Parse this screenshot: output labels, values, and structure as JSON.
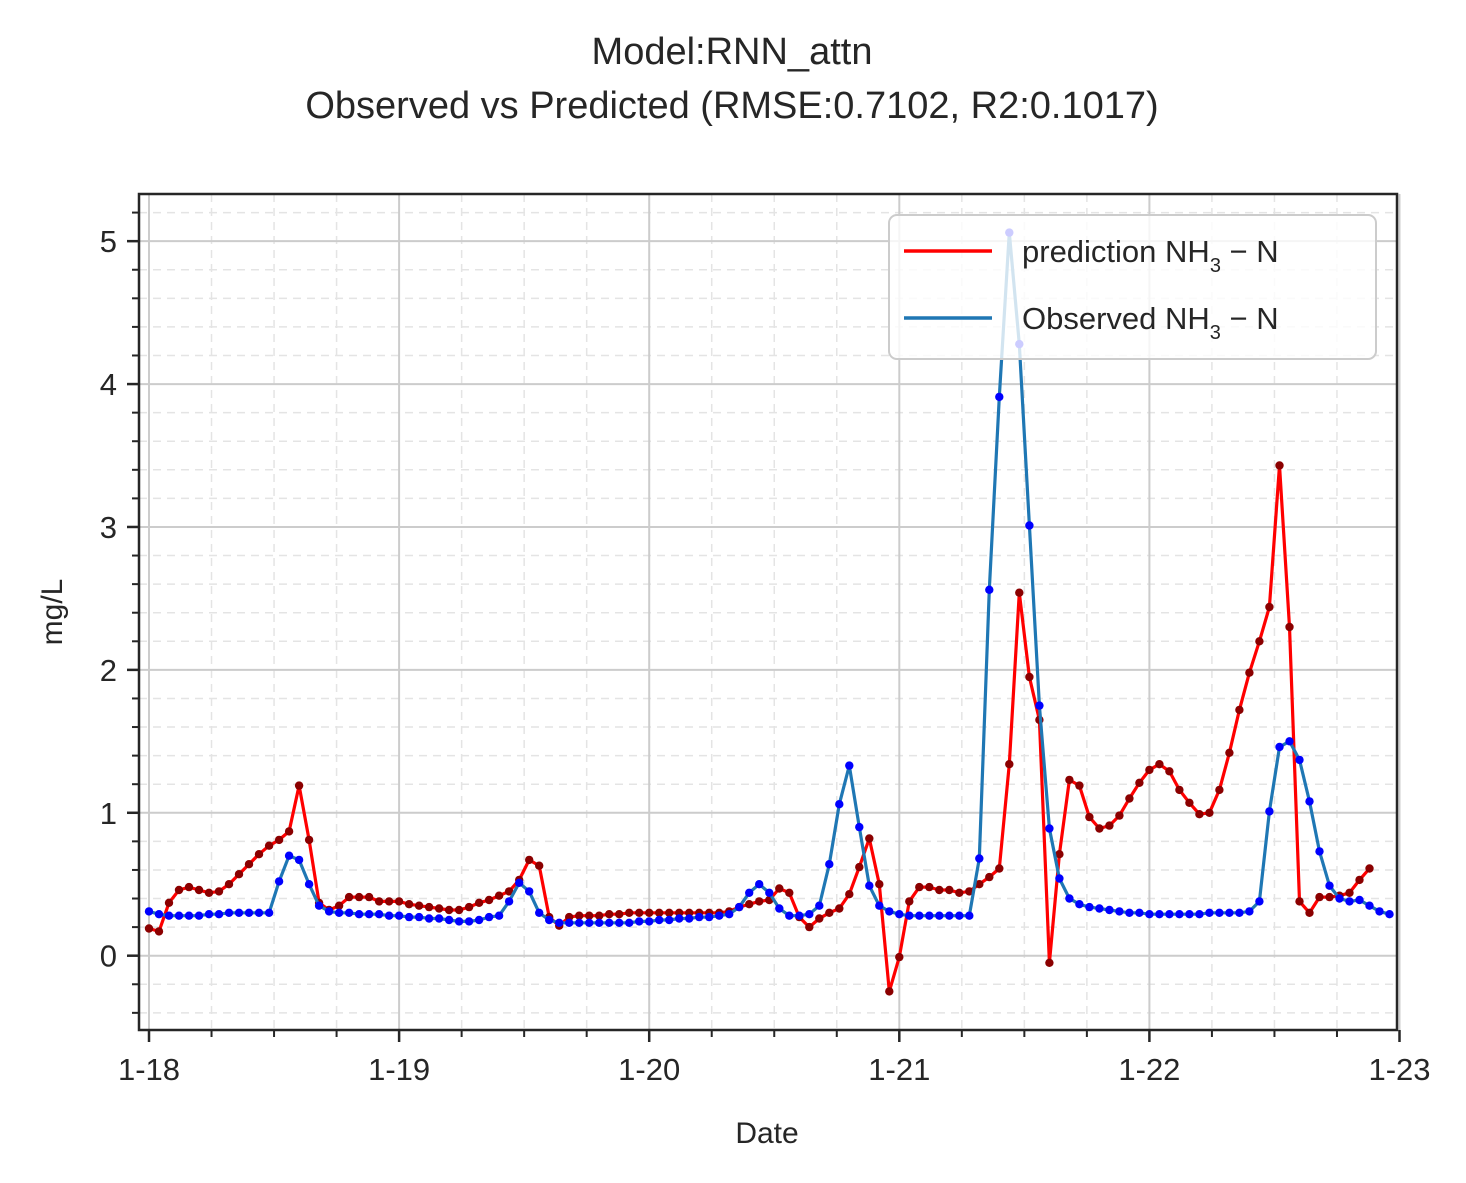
{
  "chart_data": {
    "type": "line",
    "title": "Model:RNN_attn",
    "subtitle": "Observed vs Predicted (RMSE:0.7102, R2:0.1017)",
    "xlabel": "Date",
    "ylabel": "mg/L",
    "x_ticks": [
      "1-18",
      "1-19",
      "1-20",
      "1-21",
      "1-22",
      "1-23"
    ],
    "y_ticks": [
      0,
      1,
      2,
      3,
      4,
      5
    ],
    "xlim": [
      -0.04,
      4.99
    ],
    "ylim": [
      -0.52,
      5.33
    ],
    "grid": true,
    "legend_position": "top-right",
    "x_step": 0.04,
    "series": [
      {
        "name_main": "prediction NH",
        "name_sub": "3",
        "name_tail": " − N",
        "color": "#ff0000",
        "marker_color": "#8b0000",
        "values": [
          0.19,
          0.17,
          0.37,
          0.46,
          0.48,
          0.46,
          0.44,
          0.45,
          0.5,
          0.57,
          0.64,
          0.71,
          0.77,
          0.81,
          0.87,
          1.19,
          0.81,
          0.37,
          0.32,
          0.35,
          0.41,
          0.41,
          0.41,
          0.38,
          0.38,
          0.38,
          0.36,
          0.35,
          0.34,
          0.33,
          0.32,
          0.32,
          0.34,
          0.37,
          0.39,
          0.42,
          0.45,
          0.53,
          0.67,
          0.63,
          0.27,
          0.21,
          0.27,
          0.28,
          0.28,
          0.28,
          0.29,
          0.29,
          0.3,
          0.3,
          0.3,
          0.3,
          0.3,
          0.3,
          0.3,
          0.3,
          0.3,
          0.3,
          0.31,
          0.34,
          0.36,
          0.38,
          0.39,
          0.47,
          0.44,
          0.27,
          0.2,
          0.26,
          0.3,
          0.33,
          0.43,
          0.62,
          0.82,
          0.5,
          -0.25,
          -0.01,
          0.38,
          0.48,
          0.48,
          0.46,
          0.46,
          0.44,
          0.45,
          0.5,
          0.55,
          0.61,
          1.34,
          2.54,
          1.95,
          1.65,
          -0.05,
          0.71,
          1.23,
          1.19,
          0.97,
          0.89,
          0.91,
          0.98,
          1.1,
          1.21,
          1.3,
          1.34,
          1.29,
          1.16,
          1.07,
          0.99,
          1.0,
          1.16,
          1.42,
          1.72,
          1.98,
          2.2,
          2.44,
          3.43,
          2.3,
          0.38,
          0.3,
          0.41,
          0.41,
          0.42,
          0.44,
          0.53,
          0.61
        ]
      },
      {
        "name_main": "Observed NH",
        "name_sub": "3",
        "name_tail": " − N",
        "color": "#1f77b4",
        "marker_color": "#0000ff",
        "values": [
          0.31,
          0.29,
          0.28,
          0.28,
          0.28,
          0.28,
          0.29,
          0.29,
          0.3,
          0.3,
          0.3,
          0.3,
          0.3,
          0.52,
          0.7,
          0.67,
          0.5,
          0.35,
          0.31,
          0.3,
          0.3,
          0.29,
          0.29,
          0.29,
          0.28,
          0.28,
          0.27,
          0.27,
          0.26,
          0.26,
          0.25,
          0.24,
          0.24,
          0.25,
          0.27,
          0.28,
          0.38,
          0.51,
          0.45,
          0.3,
          0.25,
          0.23,
          0.23,
          0.23,
          0.23,
          0.23,
          0.23,
          0.23,
          0.23,
          0.24,
          0.24,
          0.25,
          0.25,
          0.26,
          0.26,
          0.27,
          0.27,
          0.28,
          0.29,
          0.34,
          0.44,
          0.5,
          0.44,
          0.33,
          0.28,
          0.28,
          0.29,
          0.35,
          0.64,
          1.06,
          1.33,
          0.9,
          0.49,
          0.35,
          0.31,
          0.29,
          0.28,
          0.28,
          0.28,
          0.28,
          0.28,
          0.28,
          0.28,
          0.68,
          2.56,
          3.91,
          5.06,
          4.28,
          3.01,
          1.75,
          0.89,
          0.54,
          0.4,
          0.36,
          0.34,
          0.33,
          0.32,
          0.31,
          0.3,
          0.3,
          0.29,
          0.29,
          0.29,
          0.29,
          0.29,
          0.29,
          0.3,
          0.3,
          0.3,
          0.3,
          0.31,
          0.38,
          1.01,
          1.46,
          1.5,
          1.37,
          1.08,
          0.73,
          0.49,
          0.4,
          0.38,
          0.39,
          0.35,
          0.31,
          0.29
        ]
      }
    ]
  }
}
